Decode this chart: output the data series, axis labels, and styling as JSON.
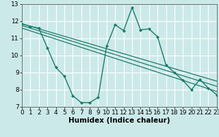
{
  "title": "",
  "xlabel": "Humidex (Indice chaleur)",
  "x": [
    0,
    1,
    2,
    3,
    4,
    5,
    6,
    7,
    8,
    9,
    10,
    11,
    12,
    13,
    14,
    15,
    16,
    17,
    18,
    19,
    20,
    21,
    22,
    23
  ],
  "y_main": [
    11.85,
    11.7,
    11.6,
    10.45,
    9.3,
    8.8,
    7.65,
    7.25,
    7.25,
    7.55,
    10.55,
    11.8,
    11.45,
    12.8,
    11.5,
    11.55,
    11.1,
    9.45,
    9.0,
    8.55,
    8.0,
    8.6,
    8.1,
    7.7
  ],
  "trend1_x": [
    0,
    23
  ],
  "trend1_y": [
    11.85,
    8.5
  ],
  "trend2_x": [
    0,
    23
  ],
  "trend2_y": [
    11.6,
    7.9
  ],
  "trend3_x": [
    0,
    23
  ],
  "trend3_y": [
    11.75,
    8.2
  ],
  "line_color": "#1a7a6a",
  "bg_color": "#cce9e9",
  "grid_color": "#ffffff",
  "ylim": [
    7,
    13
  ],
  "xlim": [
    0,
    23
  ],
  "yticks": [
    7,
    8,
    9,
    10,
    11,
    12,
    13
  ],
  "xticks": [
    0,
    1,
    2,
    3,
    4,
    5,
    6,
    7,
    8,
    9,
    10,
    11,
    12,
    13,
    14,
    15,
    16,
    17,
    18,
    19,
    20,
    21,
    22,
    23
  ],
  "tick_fontsize": 6.5,
  "xlabel_fontsize": 7.5
}
